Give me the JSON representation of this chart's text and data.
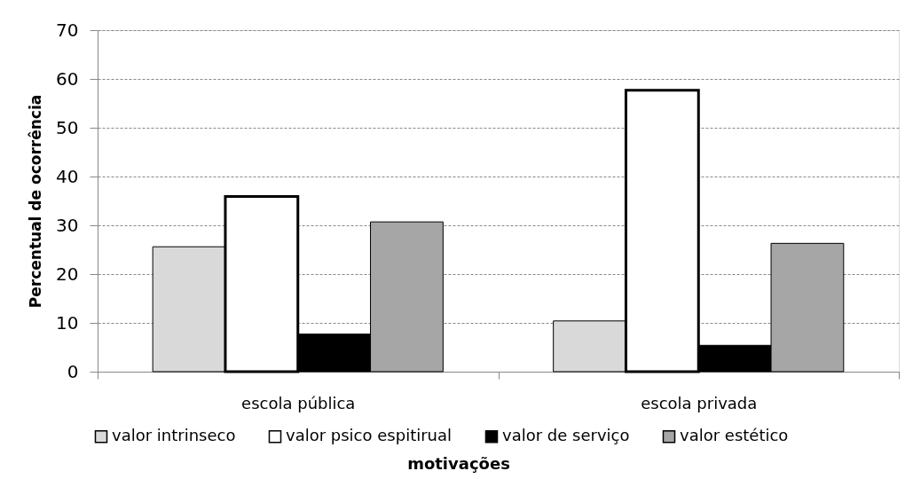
{
  "chart_data": {
    "type": "bar",
    "categories": [
      "escola pública",
      "escola privada"
    ],
    "series": [
      {
        "name": "valor intrinseco",
        "color": "#d9d9d9",
        "values": [
          25.6,
          10.4
        ]
      },
      {
        "name": "valor psico espitirual",
        "color": "#ffffff",
        "values": [
          35.9,
          57.7
        ]
      },
      {
        "name": "valor de serviço",
        "color": "#000000",
        "values": [
          7.7,
          5.4
        ]
      },
      {
        "name": "valor estético",
        "color": "#a6a6a6",
        "values": [
          30.7,
          26.3
        ]
      }
    ],
    "ylabel": "Percentual de ocorrência",
    "xlabel": "motivações",
    "ylim": [
      0,
      70
    ],
    "yticks": [
      0,
      10,
      20,
      30,
      40,
      50,
      60,
      70
    ],
    "grid": "y",
    "legend": "bottom"
  }
}
